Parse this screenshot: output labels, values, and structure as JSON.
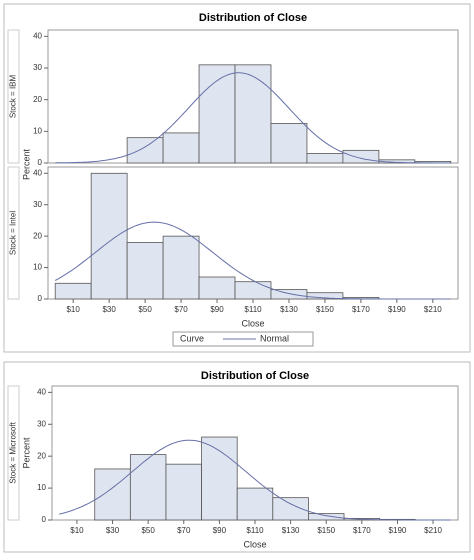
{
  "chart_data": [
    {
      "type": "histogram",
      "title": "Distribution of Close",
      "xlabel": "Close",
      "ylabel": "Percent",
      "xlim": [
        -4,
        224
      ],
      "xticks": [
        {
          "value": 10,
          "label": "$10"
        },
        {
          "value": 30,
          "label": "$30"
        },
        {
          "value": 50,
          "label": "$50"
        },
        {
          "value": 70,
          "label": "$70"
        },
        {
          "value": 90,
          "label": "$90"
        },
        {
          "value": 110,
          "label": "$110"
        },
        {
          "value": 130,
          "label": "$130"
        },
        {
          "value": 150,
          "label": "$150"
        },
        {
          "value": 170,
          "label": "$170"
        },
        {
          "value": 190,
          "label": "$190"
        },
        {
          "value": 210,
          "label": "$210"
        }
      ],
      "ylim": [
        0,
        42
      ],
      "yticks": [
        0,
        10,
        20,
        30,
        40
      ],
      "color": "#dfe5f0",
      "curve_color": "#6770a8",
      "legend": {
        "title": "Curve",
        "name": "Normal"
      },
      "panels": [
        {
          "label": "Stock = IBM",
          "bins": [
            40,
            60,
            80,
            100,
            120,
            140,
            160,
            180,
            200,
            220
          ],
          "counts": [
            8,
            9.5,
            31,
            31,
            12.5,
            3,
            4,
            1,
            0.5
          ],
          "normal": {
            "mean": 102,
            "sd": 28
          }
        },
        {
          "label": "Stock = Intel",
          "bins": [
            0,
            20,
            40,
            60,
            80,
            100,
            120,
            140,
            160,
            180
          ],
          "counts": [
            5,
            40,
            18,
            20,
            7,
            5.5,
            3,
            2,
            0.5
          ],
          "normal": {
            "mean": 55,
            "sd": 32.6
          }
        }
      ]
    },
    {
      "type": "histogram",
      "title": "Distribution of Close",
      "xlabel": "Close",
      "ylabel": "Percent",
      "xlim": [
        -4,
        224
      ],
      "xticks": [
        {
          "value": 10,
          "label": "$10"
        },
        {
          "value": 30,
          "label": "$30"
        },
        {
          "value": 50,
          "label": "$50"
        },
        {
          "value": 70,
          "label": "$70"
        },
        {
          "value": 90,
          "label": "$90"
        },
        {
          "value": 110,
          "label": "$110"
        },
        {
          "value": 130,
          "label": "$130"
        },
        {
          "value": 150,
          "label": "$150"
        },
        {
          "value": 170,
          "label": "$170"
        },
        {
          "value": 190,
          "label": "$190"
        },
        {
          "value": 210,
          "label": "$210"
        }
      ],
      "ylim": [
        0,
        42
      ],
      "yticks": [
        0,
        10,
        20,
        30,
        40
      ],
      "color": "#dfe5f0",
      "curve_color": "#6770a8",
      "panels": [
        {
          "label": "Stock = Microsoft",
          "bins": [
            20,
            40,
            60,
            80,
            100,
            120,
            140,
            160,
            180,
            200
          ],
          "counts": [
            16,
            20.5,
            17.5,
            26,
            10,
            7,
            2,
            0.5,
            0.2
          ],
          "normal": {
            "mean": 73,
            "sd": 31.9
          }
        }
      ]
    }
  ]
}
